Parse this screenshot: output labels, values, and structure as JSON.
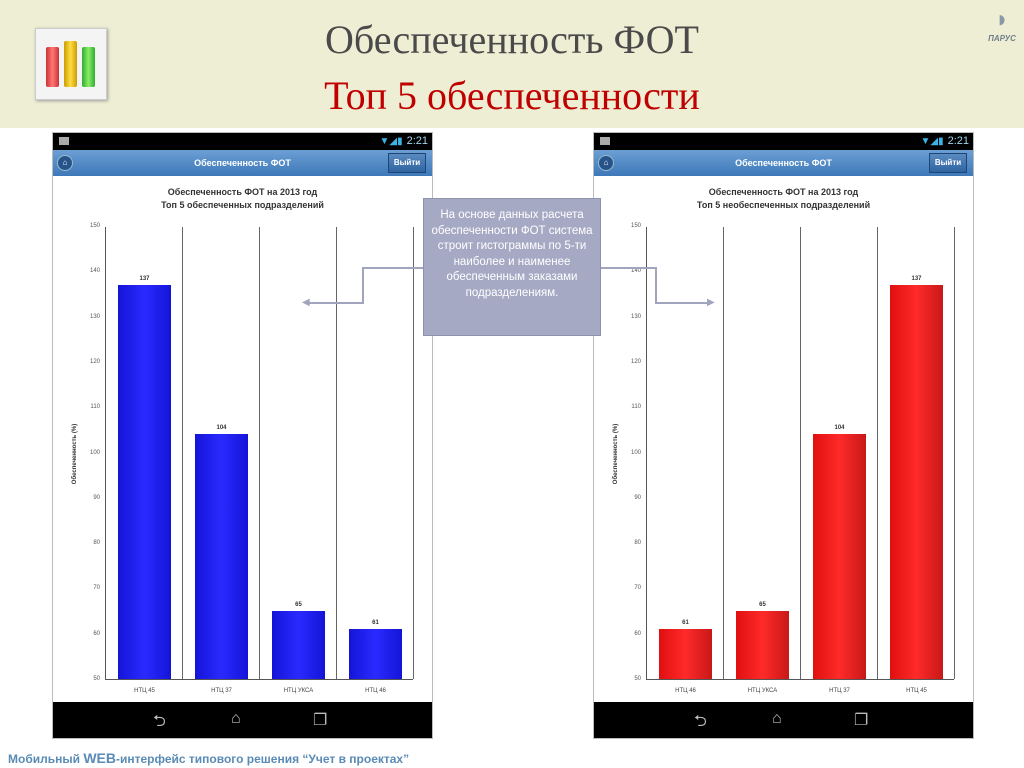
{
  "slide": {
    "title": "Обеспеченность ФОТ",
    "subtitle": "Топ 5 обеспеченности",
    "brand": "ПАРУС",
    "footer_prefix": "Мобильный ",
    "footer_web": "WEB",
    "footer_suffix": "-интерфейс типового решения “Учет в проектах”"
  },
  "callout": "На основе данных расчета обеспеченности ФОТ система строит гистограммы по 5-ти наиболее и наименее обеспеченным заказами подразделениям.",
  "phones": [
    {
      "time": "2:21",
      "app_title": "Обеспеченность ФОТ",
      "exit": "Выйти"
    },
    {
      "time": "2:21",
      "app_title": "Обеспеченность ФОТ",
      "exit": "Выйти"
    }
  ],
  "chart_data": [
    {
      "type": "bar",
      "title": "Обеспеченность ФОТ на 2013 год",
      "subtitle": "Топ 5 обеспеченных подразделений",
      "ylabel": "Обеспеченность (%)",
      "ylim": [
        50,
        150
      ],
      "yticks": [
        50,
        60,
        70,
        80,
        90,
        100,
        110,
        120,
        130,
        140,
        150
      ],
      "categories": [
        "НТЦ 45",
        "НТЦ 37",
        "НТЦ УКСА",
        "НТЦ 46"
      ],
      "values": [
        137,
        104,
        65,
        61
      ],
      "color": "#1a1ae6"
    },
    {
      "type": "bar",
      "title": "Обеспеченность ФОТ на 2013 год",
      "subtitle": "Топ 5 необеспеченных подразделений",
      "ylabel": "Обеспеченность (%)",
      "ylim": [
        50,
        150
      ],
      "yticks": [
        50,
        60,
        70,
        80,
        90,
        100,
        110,
        120,
        130,
        140,
        150
      ],
      "categories": [
        "НТЦ 46",
        "НТЦ УКСА",
        "НТЦ 37",
        "НТЦ 45"
      ],
      "values": [
        61,
        65,
        104,
        137
      ],
      "color": "#ee1c1c"
    }
  ]
}
